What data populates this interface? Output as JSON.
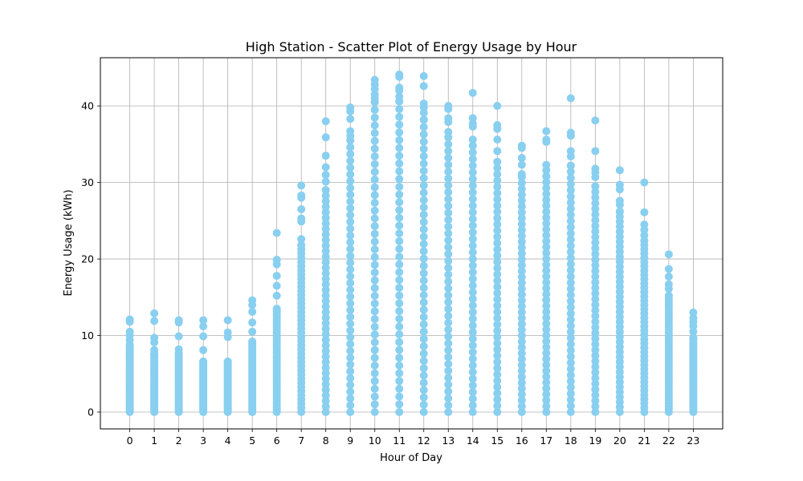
{
  "chart_data": {
    "type": "scatter",
    "title": "High Station - Scatter Plot of Energy Usage by Hour",
    "xlabel": "Hour of Day",
    "ylabel": "Energy Usage (kWh)",
    "x_ticks": [
      0,
      1,
      2,
      3,
      4,
      5,
      6,
      7,
      8,
      9,
      10,
      11,
      12,
      13,
      14,
      15,
      16,
      17,
      18,
      19,
      20,
      21,
      22,
      23
    ],
    "y_ticks": [
      0,
      10,
      20,
      30,
      40
    ],
    "xlim": [
      -1.2,
      24.2
    ],
    "ylim": [
      -2.2,
      46.3
    ],
    "grid": true,
    "point_color": "#89CFF0",
    "series": [
      {
        "name": "",
        "points_by_hour": [
          {
            "x": 0,
            "max": 12.1,
            "outliers": [
              11.8,
              10.5,
              10.0,
              9.4,
              8.8
            ]
          },
          {
            "x": 1,
            "max": 12.9,
            "outliers": [
              11.9,
              9.7,
              9.1,
              8.1,
              7.6
            ]
          },
          {
            "x": 2,
            "max": 12.0,
            "outliers": [
              11.7,
              9.9,
              8.2,
              7.7
            ]
          },
          {
            "x": 3,
            "max": 12.0,
            "outliers": [
              11.2,
              9.9,
              8.1,
              6.6
            ]
          },
          {
            "x": 4,
            "max": 12.0,
            "outliers": [
              10.4,
              9.8,
              6.6
            ]
          },
          {
            "x": 5,
            "max": 14.6,
            "outliers": [
              14.0,
              13.1,
              11.7,
              10.5,
              9.2
            ]
          },
          {
            "x": 6,
            "max": 23.4,
            "outliers": [
              19.9,
              19.3,
              17.8,
              16.5,
              15.2,
              13.5
            ]
          },
          {
            "x": 7,
            "max": 29.6,
            "outliers": [
              28.3,
              28.0,
              26.5,
              25.3,
              24.9,
              22.6,
              21.8
            ]
          },
          {
            "x": 8,
            "max": 38.0,
            "outliers": [
              35.9,
              33.5,
              32.0,
              31.0,
              30.1,
              29.0
            ]
          },
          {
            "x": 9,
            "max": 39.8,
            "outliers": [
              39.3,
              38.3,
              36.7,
              36.1,
              35.5
            ]
          },
          {
            "x": 10,
            "max": 43.4,
            "outliers": [
              42.8,
              42.2,
              41.5,
              41.0,
              40.5
            ]
          },
          {
            "x": 11,
            "max": 44.1,
            "outliers": [
              43.8,
              42.4,
              42.0,
              41.2,
              40.6
            ]
          },
          {
            "x": 12,
            "max": 43.9,
            "outliers": [
              42.6,
              40.3,
              39.8,
              39.1,
              38.2
            ]
          },
          {
            "x": 13,
            "max": 40.0,
            "outliers": [
              39.6,
              38.4,
              37.9,
              36.6,
              35.9
            ]
          },
          {
            "x": 14,
            "max": 41.7,
            "outliers": [
              38.4,
              37.7,
              37.3,
              35.6,
              34.8
            ]
          },
          {
            "x": 15,
            "max": 40.0,
            "outliers": [
              37.5,
              37.0,
              35.6,
              34.1,
              32.7
            ]
          },
          {
            "x": 16,
            "max": 34.8,
            "outliers": [
              34.5,
              33.2,
              32.3,
              31.1,
              30.7
            ]
          },
          {
            "x": 17,
            "max": 36.7,
            "outliers": [
              35.6,
              35.3,
              32.3,
              31.6,
              30.8
            ]
          },
          {
            "x": 18,
            "max": 41.0,
            "outliers": [
              36.5,
              36.1,
              34.1,
              33.4,
              32.2
            ]
          },
          {
            "x": 19,
            "max": 38.1,
            "outliers": [
              34.1,
              31.8,
              31.3,
              30.7,
              29.5
            ]
          },
          {
            "x": 20,
            "max": 31.6,
            "outliers": [
              29.7,
              29.1,
              27.6,
              27.1,
              26.2
            ]
          },
          {
            "x": 21,
            "max": 30.0,
            "outliers": [
              26.1,
              24.5,
              23.8,
              23.1,
              22.4
            ]
          },
          {
            "x": 22,
            "max": 20.6,
            "outliers": [
              18.7,
              17.7,
              16.7,
              16.1,
              15.2
            ]
          },
          {
            "x": 23,
            "max": 13.0,
            "outliers": [
              12.3,
              11.8,
              11.2,
              10.5,
              9.7
            ]
          }
        ]
      }
    ]
  }
}
